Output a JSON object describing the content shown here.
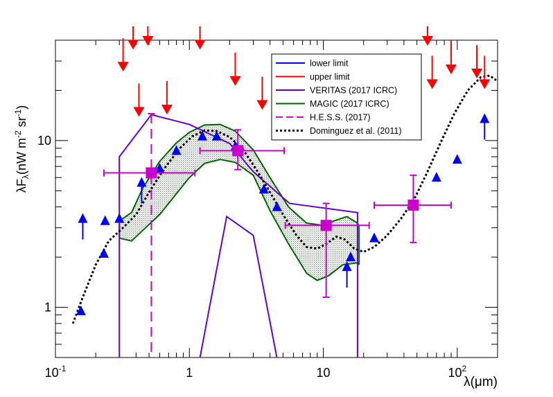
{
  "chart_data": {
    "type": "scatter",
    "title": "",
    "xlabel": "λ(μm)",
    "ylabel_main": "λF",
    "ylabel_sub": "λ",
    "ylabel_unit_a": "(nW m",
    "ylabel_exp_a": "-2",
    "ylabel_unit_b": " sr",
    "ylabel_exp_b": "-1",
    "ylabel_close": ")",
    "xscale": "log",
    "yscale": "log",
    "xlim": [
      0.1,
      200
    ],
    "ylim": [
      0.5,
      40
    ],
    "grid": false,
    "x_ticks": [
      {
        "value": 0.1,
        "base": "10",
        "exp": "-1"
      },
      {
        "value": 1,
        "base": "1",
        "exp": ""
      },
      {
        "value": 10,
        "base": "10",
        "exp": ""
      },
      {
        "value": 100,
        "base": "10",
        "exp": "2"
      }
    ],
    "y_ticks": [
      {
        "value": 1,
        "label": "1"
      },
      {
        "value": 10,
        "label": "10"
      }
    ],
    "legend": {
      "position": "top-right",
      "entries": [
        {
          "label": "lower limit",
          "color": "#0000ff",
          "dash": "solid",
          "width": 2
        },
        {
          "label": "upper limit",
          "color": "#ff0000",
          "dash": "solid",
          "width": 2
        },
        {
          "label": "VERITAS (2017 ICRC)",
          "color": "#6600cc",
          "dash": "solid",
          "width": 2
        },
        {
          "label": "MAGIC (2017 ICRC)",
          "color": "#006600",
          "dash": "solid",
          "width": 2
        },
        {
          "label": "H.E.S.S. (2017)",
          "color": "#dd00dd",
          "dash": "dashed",
          "width": 2
        },
        {
          "label": "Dominguez et al. (2011)",
          "color": "#000000",
          "dash": "dotted",
          "width": 3
        }
      ]
    },
    "series": [
      {
        "name": "lower limit",
        "kind": "lower_limit_markers",
        "color": "#0000ff",
        "points": [
          {
            "x": 0.155,
            "y": 0.95,
            "limit": false
          },
          {
            "x": 0.16,
            "y": 3.4,
            "limit": true
          },
          {
            "x": 0.23,
            "y": 2.1,
            "limit": false
          },
          {
            "x": 0.235,
            "y": 3.3,
            "limit": false
          },
          {
            "x": 0.3,
            "y": 3.4,
            "limit": false
          },
          {
            "x": 0.44,
            "y": 5.6,
            "limit": true
          },
          {
            "x": 0.6,
            "y": 6.8,
            "limit": false
          },
          {
            "x": 0.8,
            "y": 8.7,
            "limit": false
          },
          {
            "x": 1.25,
            "y": 10.6,
            "limit": false
          },
          {
            "x": 1.6,
            "y": 10.6,
            "limit": false
          },
          {
            "x": 2.2,
            "y": 9.2,
            "limit": false
          },
          {
            "x": 3.6,
            "y": 5.1,
            "limit": false
          },
          {
            "x": 4.5,
            "y": 4.0,
            "limit": false
          },
          {
            "x": 15,
            "y": 1.75,
            "limit": true
          },
          {
            "x": 16,
            "y": 2.0,
            "limit": false
          },
          {
            "x": 24,
            "y": 2.6,
            "limit": false
          },
          {
            "x": 70,
            "y": 6.0,
            "limit": false
          },
          {
            "x": 100,
            "y": 7.7,
            "limit": false
          },
          {
            "x": 160,
            "y": 13.5,
            "limit": true
          }
        ]
      },
      {
        "name": "upper limit",
        "kind": "upper_limit_arrows",
        "color": "#ff0000",
        "points": [
          {
            "x": 0.32,
            "y": 28
          },
          {
            "x": 0.38,
            "y": 38
          },
          {
            "x": 0.42,
            "y": 15
          },
          {
            "x": 0.49,
            "y": 40
          },
          {
            "x": 0.68,
            "y": 15.5
          },
          {
            "x": 1.2,
            "y": 38
          },
          {
            "x": 2.2,
            "y": 23
          },
          {
            "x": 3.5,
            "y": 16.5
          },
          {
            "x": 60,
            "y": 40
          },
          {
            "x": 65,
            "y": 22
          },
          {
            "x": 90,
            "y": 27
          },
          {
            "x": 140,
            "y": 25.5
          },
          {
            "x": 160,
            "y": 22
          }
        ]
      },
      {
        "name": "VERITAS (2017 ICRC)",
        "kind": "outline",
        "color": "#6600cc",
        "outer": [
          [
            0.3,
            0.5
          ],
          [
            0.3,
            8
          ],
          [
            0.52,
            14.3
          ],
          [
            1.0,
            12.5
          ],
          [
            2.0,
            9.6
          ],
          [
            3.0,
            6.5
          ],
          [
            5.6,
            4.2
          ],
          [
            18,
            3.7
          ],
          [
            18,
            0.5
          ]
        ],
        "inner": [
          [
            1.2,
            0.5
          ],
          [
            1.9,
            3.5
          ],
          [
            3.0,
            2.7
          ],
          [
            4.5,
            0.5
          ]
        ]
      },
      {
        "name": "MAGIC (2017 ICRC)",
        "kind": "band",
        "color": "#006600",
        "upper": [
          [
            0.3,
            3.3
          ],
          [
            0.37,
            3.7
          ],
          [
            0.45,
            5.2
          ],
          [
            0.6,
            7.5
          ],
          [
            0.8,
            9.7
          ],
          [
            1.0,
            11.2
          ],
          [
            1.3,
            12.4
          ],
          [
            1.7,
            12.5
          ],
          [
            2.2,
            11.4
          ],
          [
            3.0,
            8.8
          ],
          [
            4.0,
            6.0
          ],
          [
            5.5,
            4.0
          ],
          [
            7.5,
            3.2
          ],
          [
            10,
            3.1
          ],
          [
            12,
            3.3
          ],
          [
            15,
            3.5
          ],
          [
            18,
            3.2
          ],
          [
            18.5,
            3.05
          ]
        ],
        "lower": [
          [
            0.3,
            2.6
          ],
          [
            0.37,
            2.5
          ],
          [
            0.45,
            2.9
          ],
          [
            0.6,
            3.6
          ],
          [
            0.8,
            4.8
          ],
          [
            1.0,
            6.0
          ],
          [
            1.3,
            7.3
          ],
          [
            1.7,
            7.7
          ],
          [
            2.2,
            7.4
          ],
          [
            3.0,
            6.2
          ],
          [
            4.0,
            3.8
          ],
          [
            5.5,
            2.4
          ],
          [
            7.5,
            1.6
          ],
          [
            9,
            1.45
          ],
          [
            11,
            1.55
          ],
          [
            14,
            1.8
          ],
          [
            18,
            1.85
          ],
          [
            18.5,
            1.8
          ]
        ]
      },
      {
        "name": "H.E.S.S. (2017)",
        "kind": "points_with_errors",
        "color": "#cc00cc",
        "points": [
          {
            "x": 0.52,
            "y": 6.4,
            "xlo": 0.23,
            "xhi": 1.1,
            "ylo": 0.5,
            "yhi": 14.5
          },
          {
            "x": 2.3,
            "y": 8.7,
            "xlo": 1.2,
            "xhi": 5.1,
            "ylo": 6.7,
            "yhi": 11.6
          },
          {
            "x": 10.5,
            "y": 3.1,
            "xlo": 5.2,
            "xhi": 22,
            "ylo": 1.15,
            "yhi": 4.2
          },
          {
            "x": 47,
            "y": 4.1,
            "xlo": 24,
            "xhi": 90,
            "ylo": 2.45,
            "yhi": 6.2
          }
        ]
      },
      {
        "name": "Dominguez et al. (2011)",
        "kind": "curve",
        "color": "#000000",
        "points": [
          [
            0.135,
            0.8
          ],
          [
            0.16,
            1.15
          ],
          [
            0.2,
            1.8
          ],
          [
            0.25,
            2.5
          ],
          [
            0.32,
            3.0
          ],
          [
            0.4,
            3.6
          ],
          [
            0.5,
            4.9
          ],
          [
            0.65,
            6.8
          ],
          [
            0.85,
            9.0
          ],
          [
            1.05,
            10.6
          ],
          [
            1.3,
            11.5
          ],
          [
            1.6,
            11.4
          ],
          [
            2.0,
            10.5
          ],
          [
            2.5,
            8.9
          ],
          [
            3.2,
            6.6
          ],
          [
            4.0,
            4.9
          ],
          [
            5.0,
            3.6
          ],
          [
            6.3,
            2.7
          ],
          [
            7.5,
            2.3
          ],
          [
            9.0,
            2.25
          ],
          [
            10.5,
            2.4
          ],
          [
            12.5,
            2.65
          ],
          [
            14.5,
            2.55
          ],
          [
            17,
            2.25
          ],
          [
            20,
            2.15
          ],
          [
            24,
            2.3
          ],
          [
            30,
            2.7
          ],
          [
            38,
            3.4
          ],
          [
            48,
            4.5
          ],
          [
            60,
            6.5
          ],
          [
            75,
            9.7
          ],
          [
            95,
            14.5
          ],
          [
            120,
            20
          ],
          [
            150,
            24
          ],
          [
            175,
            24.5
          ],
          [
            195,
            23
          ]
        ]
      }
    ]
  }
}
